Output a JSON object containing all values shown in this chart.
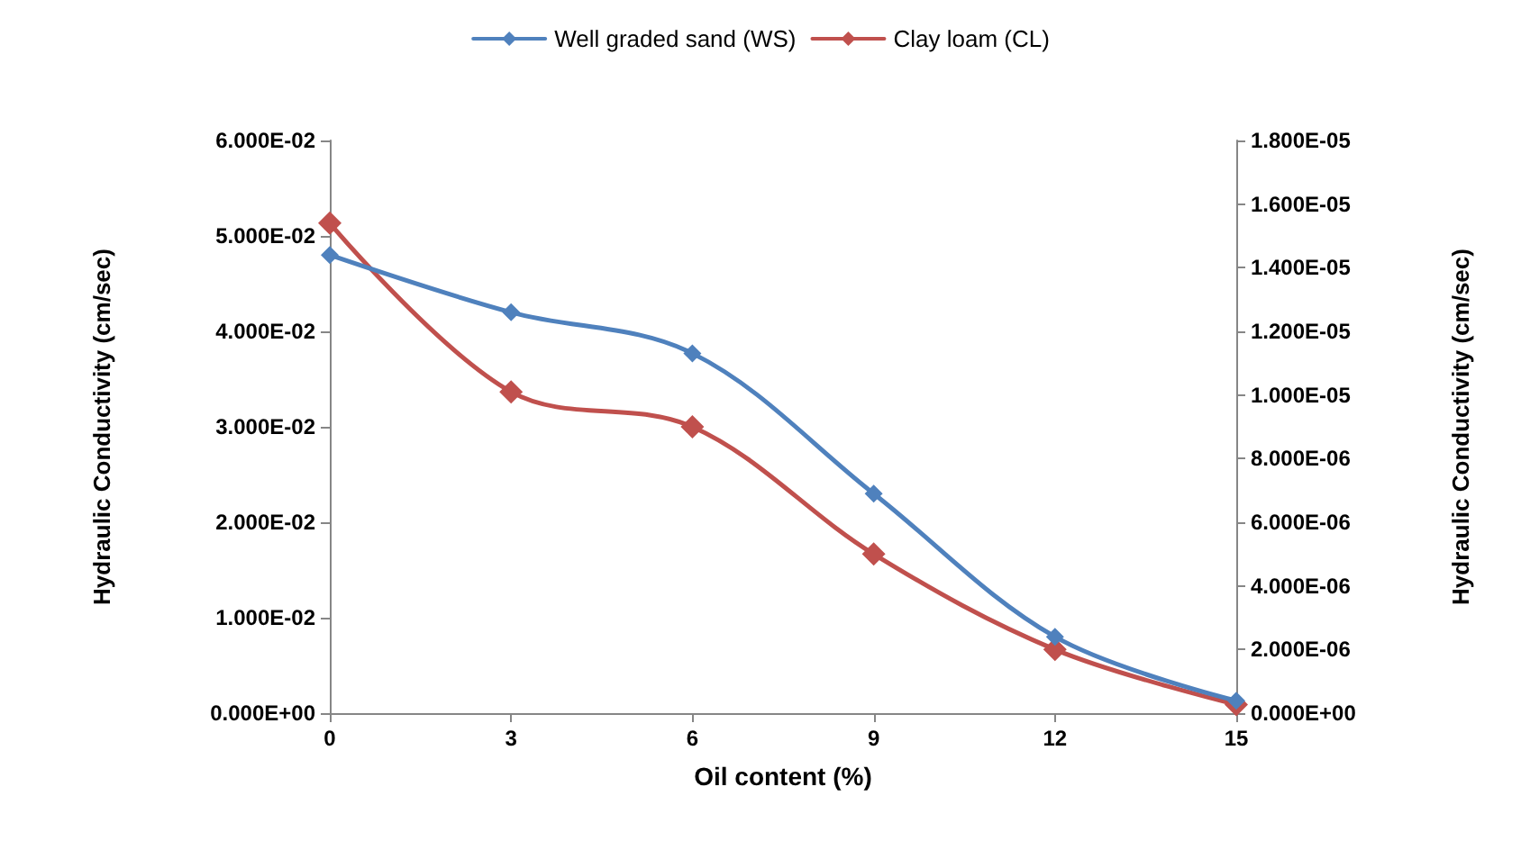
{
  "chart_data": {
    "type": "line",
    "xlabel": "Oil content (%)",
    "ylabel": "Hydraulic Conductivity (cm/sec)",
    "y2label": "Hydraulic Conductivity (cm/sec)",
    "x": [
      0,
      3,
      6,
      9,
      12,
      15
    ],
    "series": [
      {
        "name": "Well graded sand (WS)",
        "color": "#4f81bd",
        "values": [
          0.048,
          0.042,
          0.0377,
          0.023,
          0.008,
          0.0013
        ]
      },
      {
        "name": "Clay loam (CL)",
        "color": "#c0504d",
        "axis": "y2",
        "values": [
          1.54e-05,
          1.01e-05,
          9e-06,
          5e-06,
          2e-06,
          2.7e-07
        ]
      }
    ],
    "xlim": [
      0,
      15
    ],
    "xticks": [
      0,
      3,
      6,
      9,
      12,
      15
    ],
    "ylim": [
      0,
      0.06
    ],
    "yticks": [
      {
        "value": 0,
        "label": "0.000E+00"
      },
      {
        "value": 0.01,
        "label": "1.000E-02"
      },
      {
        "value": 0.02,
        "label": "2.000E-02"
      },
      {
        "value": 0.03,
        "label": "3.000E-02"
      },
      {
        "value": 0.04,
        "label": "4.000E-02"
      },
      {
        "value": 0.05,
        "label": "5.000E-02"
      },
      {
        "value": 0.06,
        "label": "6.000E-02"
      }
    ],
    "y2lim": [
      0,
      1.8e-05
    ],
    "y2ticks": [
      {
        "value": 0,
        "label": "0.000E+00"
      },
      {
        "value": 2e-06,
        "label": "2.000E-06"
      },
      {
        "value": 4e-06,
        "label": "4.000E-06"
      },
      {
        "value": 6e-06,
        "label": "6.000E-06"
      },
      {
        "value": 8e-06,
        "label": "8.000E-06"
      },
      {
        "value": 1e-05,
        "label": "1.000E-05"
      },
      {
        "value": 1.2e-05,
        "label": "1.200E-05"
      },
      {
        "value": 1.4e-05,
        "label": "1.400E-05"
      },
      {
        "value": 1.6e-05,
        "label": "1.600E-05"
      },
      {
        "value": 1.8e-05,
        "label": "1.800E-05"
      }
    ],
    "legend": "top",
    "marker": "diamond",
    "line_style": "solid",
    "grid": false
  }
}
